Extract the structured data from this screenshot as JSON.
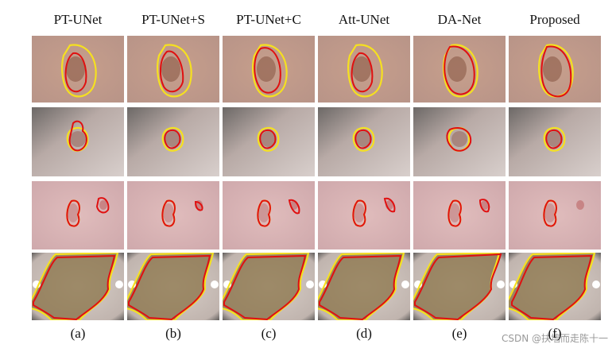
{
  "columns": [
    {
      "header": "PT-UNet",
      "label": "(a)"
    },
    {
      "header": "PT-UNet+S",
      "label": "(b)"
    },
    {
      "header": "PT-UNet+C",
      "label": "(c)"
    },
    {
      "header": "Att-UNet",
      "label": "(d)"
    },
    {
      "header": "DA-Net",
      "label": "(e)"
    },
    {
      "header": "Proposed",
      "label": "(f)"
    }
  ],
  "watermark": "CSDN @扶墙而走陈十一"
}
